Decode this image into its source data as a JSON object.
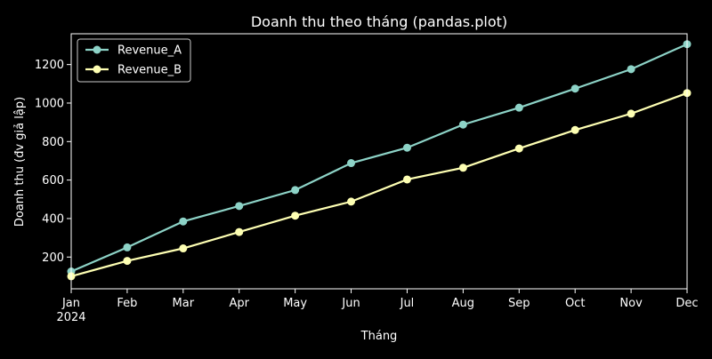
{
  "chart_data": {
    "type": "line",
    "title": "Doanh thu theo tháng (pandas.plot)",
    "xlabel": "Tháng",
    "ylabel": "Doanh thu (đv giả lập)",
    "categories": [
      "Jan",
      "Feb",
      "Mar",
      "Apr",
      "May",
      "Jun",
      "Jul",
      "Aug",
      "Sep",
      "Oct",
      "Nov",
      "Dec"
    ],
    "x_year_label": "2024",
    "yticks": [
      200,
      400,
      600,
      800,
      1000,
      1200
    ],
    "ylim": [
      35,
      1360
    ],
    "grid": false,
    "legend_position": "top-left",
    "background_color": "#000000",
    "axis_color": "#ffffff",
    "series": [
      {
        "name": "Revenue_A",
        "color": "#8dd3c7",
        "values": [
          125,
          250,
          385,
          465,
          548,
          688,
          768,
          888,
          976,
          1075,
          1176,
          1306
        ]
      },
      {
        "name": "Revenue_B",
        "color": "#feffb3",
        "values": [
          100,
          180,
          245,
          330,
          415,
          488,
          603,
          664,
          764,
          860,
          945,
          1052
        ]
      }
    ]
  }
}
